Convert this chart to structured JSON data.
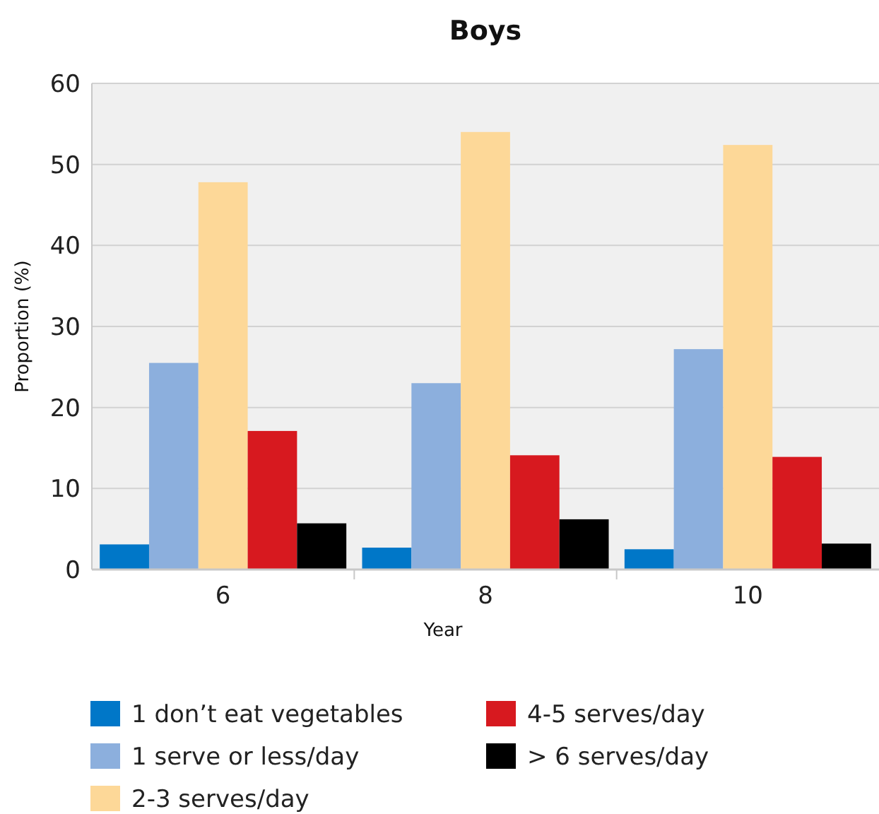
{
  "chart_data": {
    "type": "bar",
    "title": "Boys",
    "xlabel": "Year",
    "ylabel": "Proportion (%)",
    "categories": [
      "6",
      "8",
      "10"
    ],
    "series": [
      {
        "name": "1 don’t eat vegetables",
        "color": "#0077c8",
        "values": [
          3.1,
          2.7,
          2.5
        ]
      },
      {
        "name": "1 serve or less/day",
        "color": "#8cafdd",
        "values": [
          25.5,
          23.0,
          27.2
        ]
      },
      {
        "name": "2-3 serves/day",
        "color": "#fdd898",
        "values": [
          47.8,
          54.0,
          52.4
        ]
      },
      {
        "name": "4-5 serves/day",
        "color": "#d7191f",
        "values": [
          17.1,
          14.1,
          13.9
        ]
      },
      {
        "name": "> 6 serves/day",
        "color": "#000000",
        "values": [
          5.7,
          6.2,
          3.2
        ]
      }
    ],
    "ylim": [
      0,
      60
    ],
    "yticks": [
      0,
      10,
      20,
      30,
      40,
      50,
      60
    ],
    "grid": "y",
    "legend": "bottom"
  }
}
